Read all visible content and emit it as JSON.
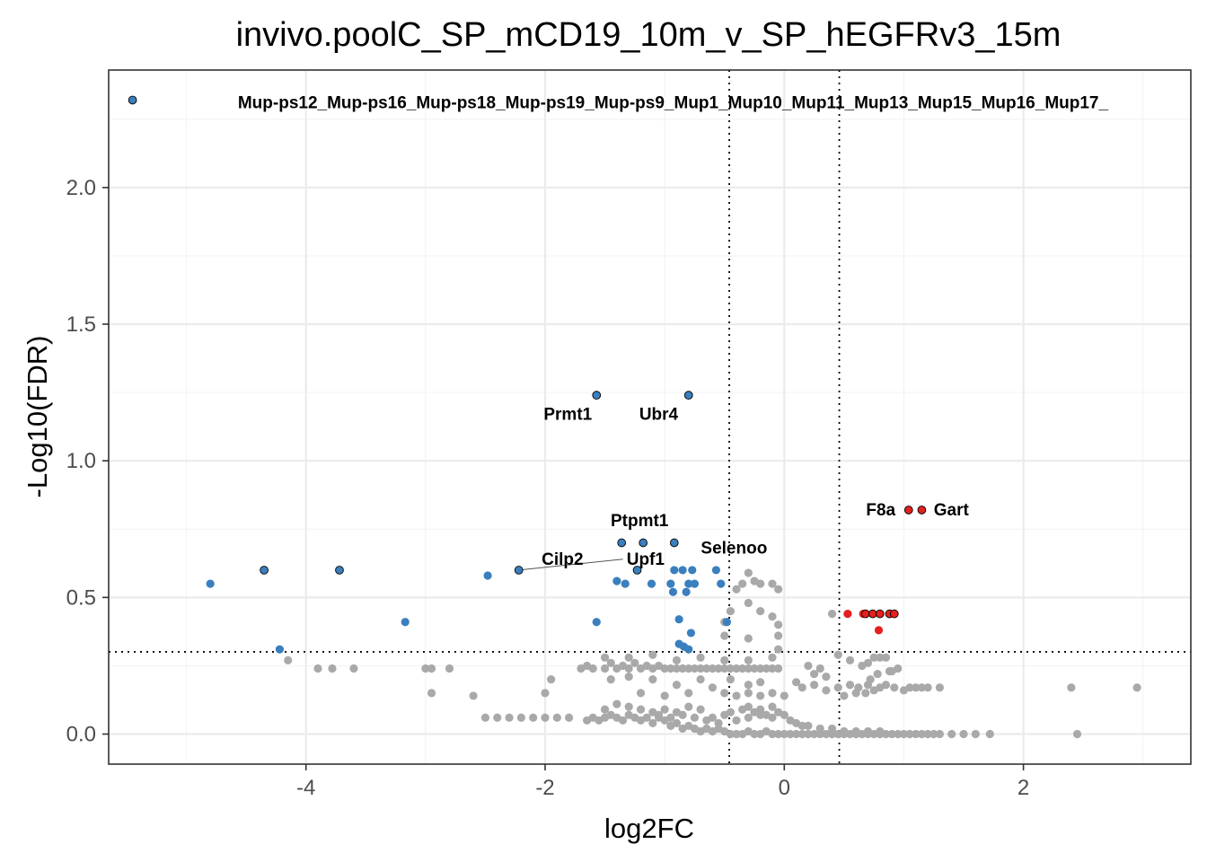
{
  "chart_data": {
    "type": "scatter",
    "title": "invivo.poolC_SP_mCD19_10m_v_SP_hEGFRv3_15m",
    "xlabel": "log2FC",
    "ylabel": "-Log10(FDR)",
    "xlim": [
      -5.65,
      3.4
    ],
    "ylim": [
      -0.11,
      2.43
    ],
    "xticks": [
      -4,
      -2,
      0,
      2
    ],
    "xtick_labels": [
      "-4",
      "-2",
      "0",
      "2"
    ],
    "yticks": [
      0.0,
      0.5,
      1.0,
      1.5,
      2.0
    ],
    "ytick_labels": [
      "0.0",
      "0.5",
      "1.0",
      "1.5",
      "2.0"
    ],
    "grid": true,
    "legend": "none",
    "thresholds": {
      "fc_low": -0.46,
      "fc_high": 0.46,
      "fdr": 0.301
    },
    "colors": {
      "down": "#3a7fbe",
      "up": "#e3201f",
      "ns": "#a9a9a9"
    },
    "series": [
      {
        "group": "ns",
        "points": [
          [
            -4.15,
            0.27
          ],
          [
            -3.9,
            0.24
          ],
          [
            -3.78,
            0.24
          ],
          [
            -3.6,
            0.24
          ],
          [
            -3.0,
            0.24
          ],
          [
            -2.95,
            0.24
          ],
          [
            -2.8,
            0.24
          ],
          [
            -2.95,
            0.15
          ],
          [
            -2.6,
            0.14
          ],
          [
            -2.5,
            0.06
          ],
          [
            -2.4,
            0.06
          ],
          [
            -2.3,
            0.06
          ],
          [
            -2.2,
            0.06
          ],
          [
            -2.1,
            0.06
          ],
          [
            -2.0,
            0.06
          ],
          [
            -1.9,
            0.06
          ],
          [
            -1.8,
            0.06
          ],
          [
            -2.0,
            0.15
          ],
          [
            -1.95,
            0.2
          ],
          [
            -1.7,
            0.24
          ],
          [
            -1.65,
            0.05
          ],
          [
            -1.6,
            0.06
          ],
          [
            -1.55,
            0.05
          ],
          [
            -1.5,
            0.06
          ],
          [
            -1.45,
            0.07
          ],
          [
            -1.4,
            0.06
          ],
          [
            -1.35,
            0.05
          ],
          [
            -1.3,
            0.07
          ],
          [
            -1.25,
            0.06
          ],
          [
            -1.2,
            0.05
          ],
          [
            -1.15,
            0.06
          ],
          [
            -1.1,
            0.04
          ],
          [
            -1.05,
            0.06
          ],
          [
            -1.0,
            0.05
          ],
          [
            -0.95,
            0.03
          ],
          [
            -0.9,
            0.04
          ],
          [
            -0.85,
            0.02
          ],
          [
            -0.8,
            0.03
          ],
          [
            -0.75,
            0.02
          ],
          [
            -0.7,
            0.01
          ],
          [
            -0.65,
            0.02
          ],
          [
            -0.6,
            0.01
          ],
          [
            -0.55,
            0.02
          ],
          [
            -0.5,
            0.01
          ],
          [
            -0.45,
            0.0
          ],
          [
            -0.4,
            0.0
          ],
          [
            -0.35,
            0.0
          ],
          [
            -0.3,
            0.01
          ],
          [
            -0.25,
            0.0
          ],
          [
            -0.2,
            0.0
          ],
          [
            -0.15,
            0.01
          ],
          [
            -0.1,
            0.0
          ],
          [
            -0.05,
            0.0
          ],
          [
            0.0,
            0.0
          ],
          [
            0.05,
            0.0
          ],
          [
            0.1,
            0.0
          ],
          [
            0.15,
            0.0
          ],
          [
            0.2,
            0.0
          ],
          [
            0.25,
            0.0
          ],
          [
            0.3,
            0.0
          ],
          [
            0.35,
            0.0
          ],
          [
            0.4,
            0.0
          ],
          [
            0.45,
            0.0
          ],
          [
            0.5,
            0.0
          ],
          [
            0.55,
            0.0
          ],
          [
            0.6,
            0.0
          ],
          [
            0.65,
            0.0
          ],
          [
            0.7,
            0.0
          ],
          [
            0.75,
            0.0
          ],
          [
            0.8,
            0.0
          ],
          [
            0.85,
            0.0
          ],
          [
            0.9,
            0.0
          ],
          [
            0.95,
            0.0
          ],
          [
            1.0,
            0.0
          ],
          [
            1.05,
            0.0
          ],
          [
            1.1,
            0.0
          ],
          [
            1.15,
            0.0
          ],
          [
            1.2,
            0.0
          ],
          [
            1.25,
            0.0
          ],
          [
            1.3,
            0.0
          ],
          [
            1.4,
            0.0
          ],
          [
            1.5,
            0.0
          ],
          [
            1.6,
            0.0
          ],
          [
            1.72,
            0.0
          ],
          [
            2.45,
            0.0
          ],
          [
            -0.6,
            0.06
          ],
          [
            -0.5,
            0.07
          ],
          [
            -0.4,
            0.05
          ],
          [
            -0.3,
            0.06
          ],
          [
            -0.2,
            0.07
          ],
          [
            -0.1,
            0.06
          ],
          [
            -0.45,
            0.08
          ],
          [
            -0.35,
            0.09
          ],
          [
            -0.25,
            0.08
          ],
          [
            -0.15,
            0.07
          ],
          [
            -0.55,
            0.04
          ],
          [
            -0.65,
            0.05
          ],
          [
            -0.75,
            0.06
          ],
          [
            -0.85,
            0.07
          ],
          [
            -0.95,
            0.06
          ],
          [
            -1.05,
            0.07
          ],
          [
            -0.7,
            0.09
          ],
          [
            -0.8,
            0.1
          ],
          [
            -0.9,
            0.08
          ],
          [
            -1.0,
            0.09
          ],
          [
            -1.1,
            0.08
          ],
          [
            -1.2,
            0.09
          ],
          [
            -1.3,
            0.1
          ],
          [
            -1.4,
            0.11
          ],
          [
            -1.5,
            0.09
          ],
          [
            -0.3,
            0.1
          ],
          [
            -0.2,
            0.09
          ],
          [
            -0.1,
            0.1
          ],
          [
            -0.05,
            0.08
          ],
          [
            0.0,
            0.07
          ],
          [
            0.05,
            0.05
          ],
          [
            0.1,
            0.04
          ],
          [
            0.15,
            0.03
          ],
          [
            0.2,
            0.03
          ],
          [
            0.3,
            0.02
          ],
          [
            0.4,
            0.02
          ],
          [
            0.5,
            0.01
          ],
          [
            0.6,
            0.01
          ],
          [
            0.7,
            0.01
          ],
          [
            0.8,
            0.01
          ],
          [
            -1.65,
            0.25
          ],
          [
            -1.6,
            0.24
          ],
          [
            -1.5,
            0.24
          ],
          [
            -1.45,
            0.26
          ],
          [
            -1.4,
            0.24
          ],
          [
            -1.35,
            0.25
          ],
          [
            -1.3,
            0.24
          ],
          [
            -1.25,
            0.26
          ],
          [
            -1.2,
            0.24
          ],
          [
            -1.15,
            0.25
          ],
          [
            -1.1,
            0.24
          ],
          [
            -1.05,
            0.25
          ],
          [
            -1.0,
            0.24
          ],
          [
            -0.95,
            0.24
          ],
          [
            -0.9,
            0.24
          ],
          [
            -0.85,
            0.24
          ],
          [
            -0.8,
            0.24
          ],
          [
            -0.75,
            0.24
          ],
          [
            -0.7,
            0.24
          ],
          [
            -0.65,
            0.24
          ],
          [
            -0.6,
            0.24
          ],
          [
            -0.55,
            0.24
          ],
          [
            -0.5,
            0.24
          ],
          [
            -0.45,
            0.24
          ],
          [
            -0.4,
            0.24
          ],
          [
            -0.35,
            0.24
          ],
          [
            -0.3,
            0.24
          ],
          [
            -0.25,
            0.24
          ],
          [
            -0.2,
            0.24
          ],
          [
            -0.15,
            0.24
          ],
          [
            -0.1,
            0.24
          ],
          [
            -0.05,
            0.24
          ],
          [
            -1.5,
            0.28
          ],
          [
            -1.3,
            0.28
          ],
          [
            -1.1,
            0.29
          ],
          [
            -0.9,
            0.27
          ],
          [
            -0.7,
            0.28
          ],
          [
            -0.5,
            0.27
          ],
          [
            -0.3,
            0.27
          ],
          [
            -0.1,
            0.28
          ],
          [
            -1.45,
            0.2
          ],
          [
            -1.3,
            0.21
          ],
          [
            -1.1,
            0.2
          ],
          [
            -0.9,
            0.18
          ],
          [
            -0.7,
            0.2
          ],
          [
            -0.6,
            0.17
          ],
          [
            -0.45,
            0.2
          ],
          [
            -0.3,
            0.18
          ],
          [
            -0.2,
            0.19
          ],
          [
            -1.2,
            0.15
          ],
          [
            -1.0,
            0.14
          ],
          [
            -0.8,
            0.15
          ],
          [
            -0.5,
            0.15
          ],
          [
            -0.4,
            0.14
          ],
          [
            -0.3,
            0.15
          ],
          [
            -0.2,
            0.14
          ],
          [
            -0.1,
            0.15
          ],
          [
            0.0,
            0.14
          ],
          [
            0.15,
            0.17
          ],
          [
            0.25,
            0.18
          ],
          [
            0.35,
            0.16
          ],
          [
            0.45,
            0.17
          ],
          [
            0.55,
            0.18
          ],
          [
            0.62,
            0.17
          ],
          [
            0.7,
            0.18
          ],
          [
            0.75,
            0.16
          ],
          [
            0.8,
            0.17
          ],
          [
            0.85,
            0.18
          ],
          [
            0.92,
            0.17
          ],
          [
            1.0,
            0.16
          ],
          [
            1.05,
            0.17
          ],
          [
            1.1,
            0.17
          ],
          [
            1.15,
            0.17
          ],
          [
            1.2,
            0.17
          ],
          [
            1.3,
            0.17
          ],
          [
            0.5,
            0.14
          ],
          [
            0.6,
            0.15
          ],
          [
            0.68,
            0.15
          ],
          [
            0.72,
            0.2
          ],
          [
            0.78,
            0.22
          ],
          [
            0.88,
            0.23
          ],
          [
            0.95,
            0.24
          ],
          [
            0.65,
            0.25
          ],
          [
            0.7,
            0.26
          ],
          [
            0.75,
            0.28
          ],
          [
            0.8,
            0.28
          ],
          [
            0.85,
            0.28
          ],
          [
            0.9,
            0.23
          ],
          [
            0.45,
            0.29
          ],
          [
            0.55,
            0.27
          ],
          [
            0.35,
            0.21
          ],
          [
            0.25,
            0.22
          ],
          [
            0.2,
            0.25
          ],
          [
            0.3,
            0.24
          ],
          [
            2.4,
            0.17
          ],
          [
            2.95,
            0.17
          ],
          [
            0.1,
            0.19
          ],
          [
            -0.5,
            0.36
          ],
          [
            -0.45,
            0.45
          ],
          [
            -0.35,
            0.55
          ],
          [
            -0.3,
            0.59
          ],
          [
            -0.25,
            0.56
          ],
          [
            -0.2,
            0.55
          ],
          [
            -0.1,
            0.55
          ],
          [
            -0.05,
            0.53
          ],
          [
            -0.3,
            0.48
          ],
          [
            -0.2,
            0.45
          ],
          [
            -0.1,
            0.43
          ],
          [
            -0.05,
            0.4
          ],
          [
            -0.3,
            0.35
          ],
          [
            -0.05,
            0.31
          ],
          [
            -0.05,
            0.36
          ],
          [
            -0.4,
            0.53
          ],
          [
            0.4,
            0.44
          ],
          [
            -0.5,
            0.41
          ]
        ]
      },
      {
        "group": "down",
        "points": [
          [
            -4.8,
            0.55
          ],
          [
            -3.17,
            0.41
          ],
          [
            -2.48,
            0.58
          ],
          [
            -1.57,
            0.41
          ],
          [
            -1.4,
            0.56
          ],
          [
            -1.33,
            0.55
          ],
          [
            -1.11,
            0.55
          ],
          [
            -0.95,
            0.55
          ],
          [
            -0.92,
            0.6
          ],
          [
            -0.85,
            0.6
          ],
          [
            -0.93,
            0.52
          ],
          [
            -0.82,
            0.52
          ],
          [
            -0.77,
            0.6
          ],
          [
            -0.75,
            0.55
          ],
          [
            -0.8,
            0.55
          ],
          [
            -0.57,
            0.6
          ],
          [
            -0.53,
            0.55
          ],
          [
            -0.88,
            0.42
          ],
          [
            -0.78,
            0.37
          ],
          [
            -0.88,
            0.33
          ],
          [
            -0.84,
            0.32
          ],
          [
            -0.8,
            0.31
          ],
          [
            -0.48,
            0.41
          ],
          [
            -4.22,
            0.31
          ]
        ]
      },
      {
        "group": "down-labeled",
        "points": [
          [
            -5.45,
            2.32
          ],
          [
            -4.35,
            0.6
          ],
          [
            -3.72,
            0.6
          ],
          [
            -2.22,
            0.6
          ],
          [
            -1.57,
            1.24
          ],
          [
            -0.8,
            1.24
          ],
          [
            -1.36,
            0.7
          ],
          [
            -1.18,
            0.7
          ],
          [
            -0.92,
            0.7
          ],
          [
            -1.23,
            0.6
          ]
        ]
      },
      {
        "group": "up",
        "points": [
          [
            0.53,
            0.44
          ],
          [
            0.66,
            0.44
          ],
          [
            0.79,
            0.38
          ]
        ]
      },
      {
        "group": "up-labeled",
        "points": [
          [
            0.68,
            0.44
          ],
          [
            0.74,
            0.44
          ],
          [
            0.8,
            0.44
          ],
          [
            0.88,
            0.44
          ],
          [
            0.92,
            0.44
          ],
          [
            1.04,
            0.82
          ],
          [
            1.15,
            0.82
          ]
        ]
      }
    ],
    "annotations": [
      {
        "text": "Mup-ps12_Mup-ps16_Mup-ps18_Mup-ps19_Mup-ps9_Mup1_Mup10_Mup11_Mup13_Mup15_Mup16_Mup17_",
        "x": -0.93,
        "y": 2.29,
        "anchor": "middle"
      },
      {
        "text": "Prmt1",
        "x": -1.81,
        "y": 1.15,
        "anchor": "middle"
      },
      {
        "text": "Ubr4",
        "x": -1.05,
        "y": 1.15,
        "anchor": "middle"
      },
      {
        "text": "Ptpmt1",
        "x": -1.21,
        "y": 0.76,
        "anchor": "middle"
      },
      {
        "text": "Selenoo",
        "x": -0.42,
        "y": 0.66,
        "anchor": "middle"
      },
      {
        "text": "Cilp2",
        "x": -1.68,
        "y": 0.62,
        "anchor": "end"
      },
      {
        "text": "Upf1",
        "x": -1.16,
        "y": 0.62,
        "anchor": "middle"
      },
      {
        "text": "F8a",
        "x": 0.93,
        "y": 0.8,
        "anchor": "end"
      },
      {
        "text": "Gart",
        "x": 1.25,
        "y": 0.8,
        "anchor": "start"
      }
    ],
    "segments": [
      {
        "from": [
          -2.22,
          0.6
        ],
        "to": [
          -1.35,
          0.64
        ]
      }
    ]
  }
}
